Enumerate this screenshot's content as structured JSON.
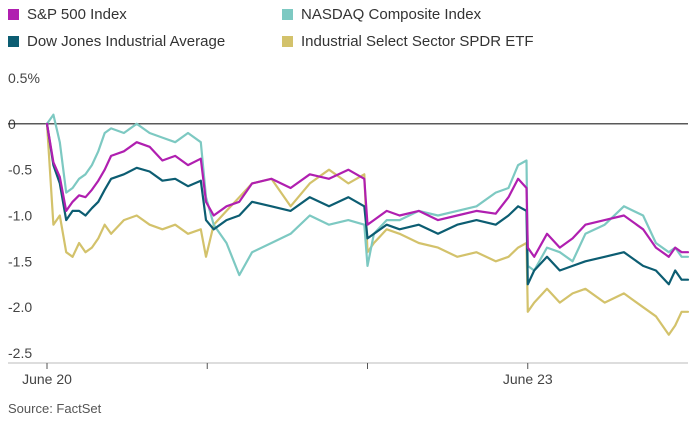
{
  "chart_data": {
    "type": "line",
    "title": "",
    "xlabel": "",
    "ylabel": "",
    "ylim": [
      -2.5,
      0.5
    ],
    "yticks": [
      0.5,
      0,
      -0.5,
      -1.0,
      -1.5,
      -2.0,
      -2.5
    ],
    "ytick_labels": [
      "0.5%",
      "0",
      "-0.5",
      "-1.0",
      "-1.5",
      "-2.0",
      "-2.5"
    ],
    "x_range": [
      0,
      100
    ],
    "x_ticks": [
      {
        "x": 0,
        "label": "June 20"
      },
      {
        "x": 25,
        "label": ""
      },
      {
        "x": 50,
        "label": ""
      },
      {
        "x": 75,
        "label": "June 23"
      }
    ],
    "legend": "top",
    "series": [
      {
        "name": "S&P 500 Index",
        "color": "#b01fb0",
        "x": [
          0,
          1,
          2,
          3,
          4,
          5,
          6,
          7,
          8,
          9,
          10,
          12,
          14,
          16,
          18,
          20,
          22,
          24,
          24.8,
          26,
          28,
          30,
          32,
          35,
          38,
          41,
          44,
          47,
          49.5,
          50,
          51,
          53,
          55,
          58,
          61,
          64,
          67,
          70,
          72,
          73.5,
          74.8,
          75,
          76,
          78,
          80,
          82,
          84,
          87,
          90,
          93,
          95,
          97,
          98,
          99,
          100
        ],
        "y": [
          0,
          -0.42,
          -0.58,
          -0.95,
          -0.85,
          -0.78,
          -0.8,
          -0.72,
          -0.62,
          -0.5,
          -0.35,
          -0.3,
          -0.2,
          -0.25,
          -0.4,
          -0.35,
          -0.45,
          -0.38,
          -0.85,
          -1.0,
          -0.9,
          -0.85,
          -0.65,
          -0.6,
          -0.7,
          -0.55,
          -0.6,
          -0.5,
          -0.6,
          -1.1,
          -1.05,
          -0.95,
          -1.0,
          -0.95,
          -1.05,
          -1.0,
          -0.95,
          -0.98,
          -0.8,
          -0.6,
          -0.7,
          -1.35,
          -1.45,
          -1.2,
          -1.35,
          -1.25,
          -1.1,
          -1.05,
          -1.0,
          -1.15,
          -1.35,
          -1.45,
          -1.35,
          -1.4,
          -1.4
        ]
      },
      {
        "name": "NASDAQ Composite Index",
        "color": "#7dc9c2",
        "x": [
          0,
          1,
          2,
          3,
          4,
          5,
          6,
          7,
          8,
          9,
          10,
          12,
          14,
          16,
          18,
          20,
          22,
          24,
          24.8,
          26,
          28,
          30,
          32,
          35,
          38,
          41,
          44,
          47,
          49.5,
          50,
          51,
          53,
          55,
          58,
          61,
          64,
          67,
          70,
          72,
          73.5,
          74.8,
          75,
          76,
          78,
          80,
          82,
          84,
          87,
          90,
          93,
          95,
          97,
          98,
          99,
          100
        ],
        "y": [
          0,
          0.1,
          -0.2,
          -0.75,
          -0.7,
          -0.6,
          -0.55,
          -0.45,
          -0.3,
          -0.1,
          -0.05,
          -0.1,
          0.0,
          -0.1,
          -0.15,
          -0.2,
          -0.1,
          -0.2,
          -0.8,
          -1.1,
          -1.3,
          -1.65,
          -1.4,
          -1.3,
          -1.2,
          -1.0,
          -1.1,
          -1.05,
          -1.1,
          -1.55,
          -1.2,
          -1.05,
          -1.05,
          -0.95,
          -1.0,
          -0.95,
          -0.9,
          -0.75,
          -0.7,
          -0.45,
          -0.4,
          -1.55,
          -1.6,
          -1.35,
          -1.4,
          -1.5,
          -1.2,
          -1.1,
          -0.9,
          -1.0,
          -1.3,
          -1.4,
          -1.35,
          -1.45,
          -1.45
        ]
      },
      {
        "name": "Dow Jones Industrial Average",
        "color": "#0c5d72",
        "x": [
          0,
          1,
          2,
          3,
          4,
          5,
          6,
          7,
          8,
          9,
          10,
          12,
          14,
          16,
          18,
          20,
          22,
          24,
          24.8,
          26,
          28,
          30,
          32,
          35,
          38,
          41,
          44,
          47,
          49.5,
          50,
          51,
          53,
          55,
          58,
          61,
          64,
          67,
          70,
          72,
          73.5,
          74.8,
          75,
          76,
          78,
          80,
          82,
          84,
          87,
          90,
          93,
          95,
          97,
          98,
          99,
          100
        ],
        "y": [
          0,
          -0.45,
          -0.65,
          -1.05,
          -0.95,
          -0.95,
          -1.0,
          -0.92,
          -0.85,
          -0.72,
          -0.6,
          -0.55,
          -0.48,
          -0.52,
          -0.62,
          -0.6,
          -0.68,
          -0.62,
          -1.05,
          -1.15,
          -1.05,
          -1.0,
          -0.85,
          -0.9,
          -0.95,
          -0.8,
          -0.9,
          -0.8,
          -0.9,
          -1.25,
          -1.2,
          -1.1,
          -1.15,
          -1.1,
          -1.2,
          -1.1,
          -1.05,
          -1.1,
          -1.0,
          -0.9,
          -0.95,
          -1.75,
          -1.6,
          -1.45,
          -1.6,
          -1.55,
          -1.5,
          -1.45,
          -1.4,
          -1.55,
          -1.6,
          -1.75,
          -1.6,
          -1.7,
          -1.7
        ]
      },
      {
        "name": "Industrial Select Sector SPDR ETF",
        "color": "#d3c26b",
        "x": [
          0,
          1,
          2,
          3,
          4,
          5,
          6,
          7,
          8,
          9,
          10,
          12,
          14,
          16,
          18,
          20,
          22,
          24,
          24.8,
          26,
          28,
          30,
          32,
          35,
          38,
          41,
          44,
          47,
          49.5,
          50,
          51,
          53,
          55,
          58,
          61,
          64,
          67,
          70,
          72,
          73.5,
          74.8,
          75,
          76,
          78,
          80,
          82,
          84,
          87,
          90,
          93,
          95,
          97,
          98,
          99,
          100
        ],
        "y": [
          0,
          -1.1,
          -1.0,
          -1.4,
          -1.45,
          -1.3,
          -1.4,
          -1.35,
          -1.25,
          -1.1,
          -1.2,
          -1.05,
          -1.0,
          -1.1,
          -1.15,
          -1.1,
          -1.2,
          -1.15,
          -1.45,
          -1.1,
          -0.95,
          -0.8,
          -0.65,
          -0.6,
          -0.9,
          -0.65,
          -0.5,
          -0.65,
          -0.55,
          -1.4,
          -1.3,
          -1.15,
          -1.2,
          -1.3,
          -1.35,
          -1.45,
          -1.4,
          -1.5,
          -1.45,
          -1.35,
          -1.3,
          -2.05,
          -1.95,
          -1.8,
          -1.95,
          -1.85,
          -1.8,
          -1.95,
          -1.85,
          -2.0,
          -2.1,
          -2.3,
          -2.2,
          -2.05,
          -2.05
        ]
      }
    ],
    "source": "Source: FactSet"
  }
}
